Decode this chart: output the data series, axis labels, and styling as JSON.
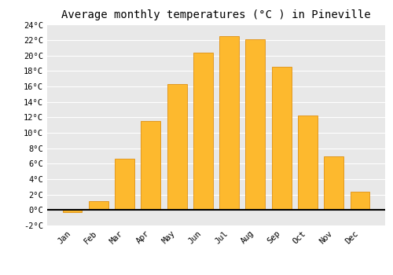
{
  "title": "Average monthly temperatures (°C ) in Pineville",
  "months": [
    "Jan",
    "Feb",
    "Mar",
    "Apr",
    "May",
    "Jun",
    "Jul",
    "Aug",
    "Sep",
    "Oct",
    "Nov",
    "Dec"
  ],
  "values": [
    -0.3,
    1.2,
    6.7,
    11.5,
    16.3,
    20.4,
    22.5,
    22.1,
    18.6,
    12.2,
    7.0,
    2.4
  ],
  "bar_color": "#FDB92E",
  "bar_edge_color": "#E09010",
  "ylim": [
    -2,
    24
  ],
  "yticks": [
    -2,
    0,
    2,
    4,
    6,
    8,
    10,
    12,
    14,
    16,
    18,
    20,
    22,
    24
  ],
  "ytick_labels": [
    "-2°C",
    "0°C",
    "2°C",
    "4°C",
    "6°C",
    "8°C",
    "10°C",
    "12°C",
    "14°C",
    "16°C",
    "18°C",
    "20°C",
    "22°C",
    "24°C"
  ],
  "background_color": "#ffffff",
  "plot_bg_color": "#e8e8e8",
  "grid_color": "#ffffff",
  "title_fontsize": 10,
  "tick_fontsize": 7.5,
  "font_family": "monospace"
}
